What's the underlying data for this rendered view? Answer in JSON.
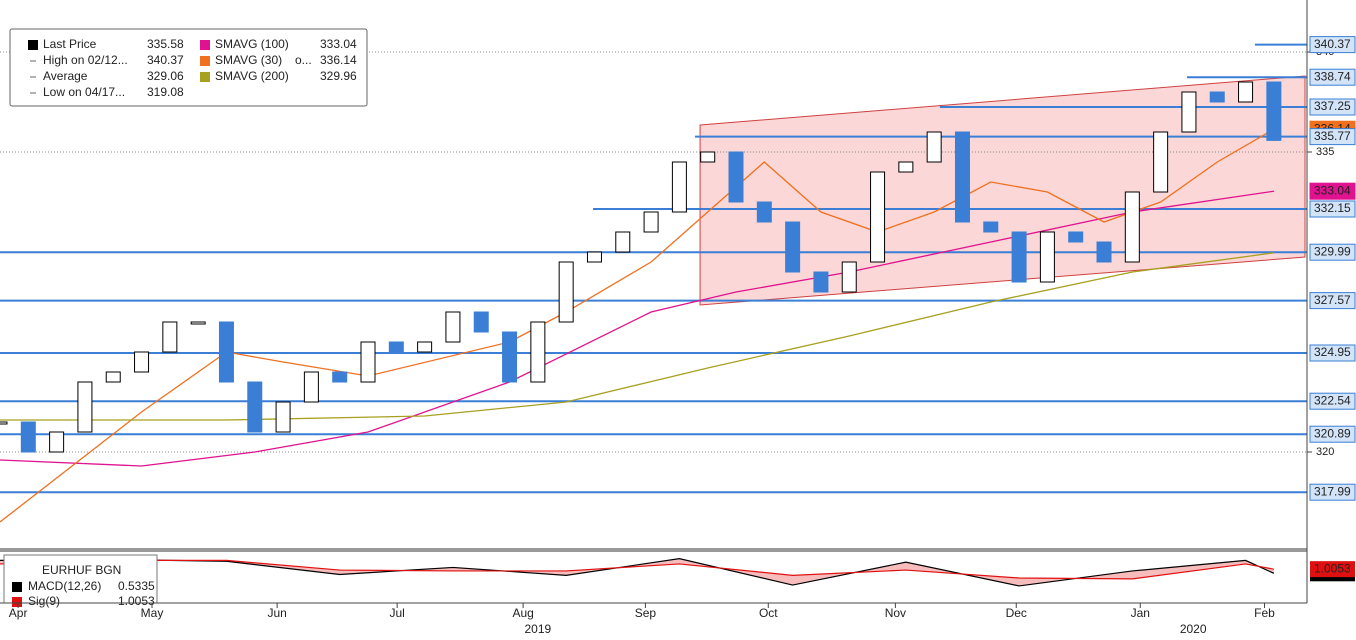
{
  "chart_data": {
    "type": "candlestick",
    "xlim": [
      0,
      46.1
    ],
    "ylim": [
      315.2,
      342.6
    ],
    "yticks": [
      320,
      335,
      340
    ],
    "xticks": [
      {
        "value": 0.64,
        "label": "Apr"
      },
      {
        "value": 5.37,
        "label": "May"
      },
      {
        "value": 9.79,
        "label": "Jun"
      },
      {
        "value": 14.03,
        "label": "Jul"
      },
      {
        "value": 18.48,
        "label": "Aug"
      },
      {
        "value": 22.8,
        "label": "Sep"
      },
      {
        "value": 27.14,
        "label": "Oct"
      },
      {
        "value": 31.63,
        "label": "Nov"
      },
      {
        "value": 35.9,
        "label": "Dec"
      },
      {
        "value": 40.28,
        "label": "Jan"
      },
      {
        "value": 44.67,
        "label": "Feb"
      }
    ],
    "year_ticks": [
      {
        "value": 19.0,
        "label": "2019"
      },
      {
        "value": 42.15,
        "label": "2020"
      }
    ],
    "x": [
      0,
      1,
      2,
      3,
      4,
      5,
      6,
      7,
      8,
      9,
      10,
      11,
      12,
      13,
      14,
      15,
      16,
      17,
      18,
      19,
      20,
      21,
      22,
      23,
      24,
      25,
      26,
      27,
      28,
      29,
      30,
      31,
      32,
      33,
      34,
      35,
      36,
      37,
      38,
      39,
      40,
      41,
      42,
      43,
      44,
      45
    ],
    "series": [
      {
        "name": "Last Price",
        "color": "#000000",
        "down_color": "#3a7fd5",
        "legend_value": 335.58,
        "values": [
          321.5,
          320.0,
          321,
          323.5,
          324,
          325,
          326.5,
          326.5,
          323.5,
          321,
          322.5,
          324,
          323.5,
          325.5,
          325,
          325.5,
          327,
          326,
          323.5,
          326.5,
          329.5,
          330,
          331,
          332,
          334.5,
          335,
          332.5,
          331.5,
          329,
          328,
          329.5,
          334,
          334.5,
          336,
          331.5,
          331,
          328.5,
          331,
          330.5,
          329.5,
          333,
          336,
          338,
          337.5,
          338.5,
          335.58
        ]
      },
      {
        "name": "SMAVG (100)",
        "color": "#e0128f",
        "legend_value": 333.04,
        "x": [
          0,
          5,
          9,
          13,
          18,
          23,
          26,
          30,
          35,
          40,
          45
        ],
        "values": [
          319.6,
          319.3,
          320,
          321,
          323.5,
          327,
          328,
          329,
          330.5,
          332,
          333.04
        ]
      },
      {
        "name": "SMAVG (30)",
        "color": "#f07020",
        "legend_value": 336.14,
        "legend_note": "o...",
        "x": [
          0,
          5,
          8,
          10,
          13,
          18,
          20,
          23,
          25,
          27,
          29,
          31,
          33,
          35,
          37,
          39,
          41,
          43,
          45
        ],
        "values": [
          316.5,
          322,
          325,
          324.5,
          323.8,
          325.5,
          327,
          329.5,
          332,
          334.5,
          332,
          331,
          332,
          333.5,
          333,
          331.5,
          332.5,
          334.5,
          336.14
        ]
      },
      {
        "name": "SMAVG (200)",
        "color": "#a8a020",
        "legend_value": 329.96,
        "x": [
          0,
          8,
          15,
          20,
          25,
          30,
          35,
          40,
          45
        ],
        "values": [
          321.6,
          321.6,
          321.8,
          322.5,
          324.2,
          325.8,
          327.5,
          329,
          329.96
        ]
      }
    ],
    "stats": [
      {
        "label": "High on 02/12...",
        "value": 340.37
      },
      {
        "label": "Average",
        "value": 329.06
      },
      {
        "label": "Low on 04/17...",
        "value": 319.08
      }
    ],
    "channel": {
      "x": [
        24.73,
        46.1
      ],
      "upper": [
        336.35,
        338.8
      ],
      "lower": [
        327.35,
        329.75
      ]
    },
    "levels": [
      {
        "value": 340.37,
        "start": 44.33
      },
      {
        "value": 338.74,
        "start": 41.93
      },
      {
        "value": 337.25,
        "start": 33.2
      },
      {
        "value": 335.77,
        "start": 24.55
      },
      {
        "value": 332.15,
        "start": 20.95
      },
      {
        "value": 329.99,
        "start": 0
      },
      {
        "value": 327.57,
        "start": 0
      },
      {
        "value": 324.95,
        "start": 0
      },
      {
        "value": 322.54,
        "start": 0
      },
      {
        "value": 320.89,
        "start": 0
      },
      {
        "value": 317.99,
        "start": 0
      }
    ],
    "macd": {
      "title": "EURHUF BGN",
      "ylim": [
        -2.5,
        2.5
      ],
      "x": [
        0,
        4,
        8,
        12,
        16,
        20,
        24,
        28,
        32,
        36,
        40,
        44,
        45
      ],
      "series": [
        {
          "name": "MACD(12,26)",
          "color": "#000000",
          "legend_value": 0.5335,
          "values": [
            2.0,
            2.1,
            1.9,
            0.4,
            1.2,
            0.3,
            2.2,
            -0.8,
            1.8,
            -0.9,
            0.8,
            2.0,
            0.5335
          ]
        },
        {
          "name": "Sig(9)",
          "color": "#e01010",
          "legend_value": 1.0053,
          "values": [
            1.6,
            2.0,
            2.0,
            0.9,
            0.8,
            0.8,
            1.6,
            0.3,
            0.9,
            0.0,
            -0.1,
            1.6,
            1.0053
          ]
        }
      ]
    }
  }
}
